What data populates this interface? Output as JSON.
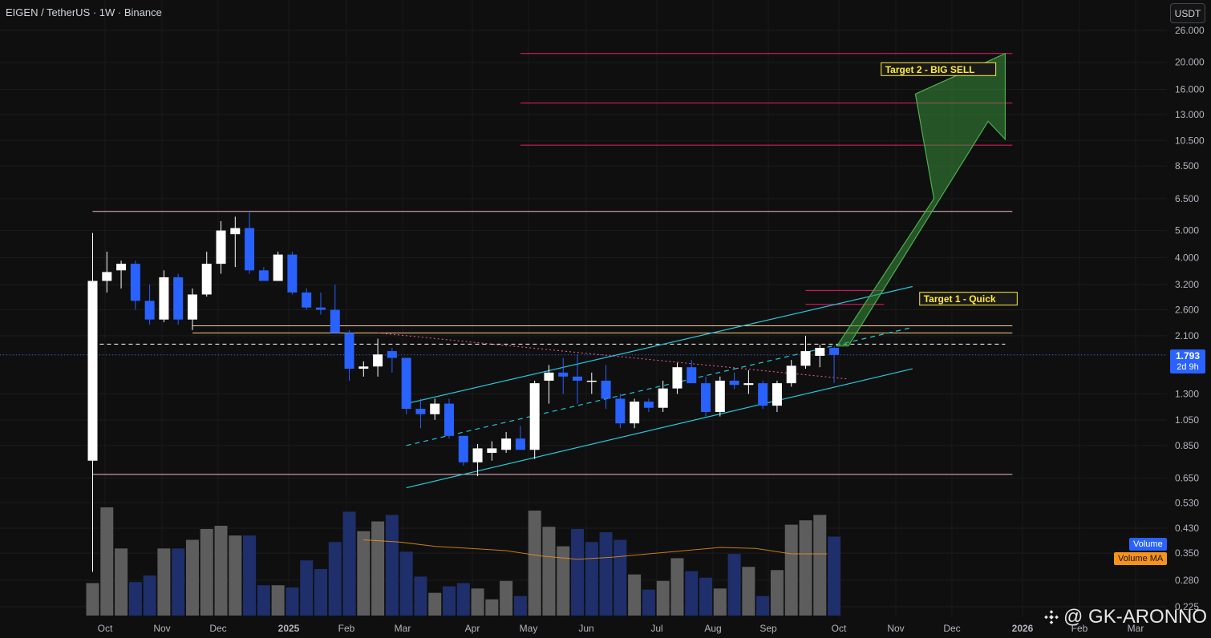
{
  "header": {
    "title": "EIGEN / TetherUS · 1W · Binance"
  },
  "unit_button": "USDT",
  "price_tag": {
    "price": "1.793",
    "countdown": "2d 9h"
  },
  "volume_tags": {
    "volume": "Volume",
    "volume_ma": "Volume MA"
  },
  "watermark": "@ GK-ARONNO",
  "annotations": {
    "target1": "Target 1 - Quick",
    "target2": "Target 2 - BIG SELL"
  },
  "colors": {
    "background": "#0f0f0f",
    "up_candle": "#ffffff",
    "down_candle": "#2962ff",
    "volume_up": "#5d5d5d",
    "volume_down": "#1e2f6b",
    "channel": "#26c6da",
    "resistance": "#f06292",
    "support": "#f8bbd0",
    "target_lines": "#e91e63",
    "arrow": "#2e7d32",
    "volume_ma": "#f7931a",
    "current_price": "#2962ff"
  },
  "chart_data": {
    "type": "candlestick",
    "title": "EIGEN / TetherUS · 1W · Binance",
    "y_scale": "log",
    "ylim": [
      0.225,
      26.0
    ],
    "y_ticks": [
      "26.000",
      "20.000",
      "16.000",
      "13.000",
      "10.500",
      "8.500",
      "6.500",
      "5.000",
      "4.000",
      "3.200",
      "2.600",
      "2.100",
      "1.793",
      "1.300",
      "1.050",
      "0.850",
      "0.650",
      "0.530",
      "0.430",
      "0.350",
      "0.280",
      "0.225"
    ],
    "x_ticks": [
      "Oct",
      "Nov",
      "Dec",
      "2025",
      "Feb",
      "Mar",
      "Apr",
      "May",
      "Jun",
      "Jul",
      "Aug",
      "Sep",
      "Oct",
      "Nov",
      "Dec",
      "2026",
      "Feb",
      "Mar"
    ],
    "x_range_weeks": [
      0,
      75
    ],
    "candles": [
      {
        "w": 0,
        "o": 0.75,
        "h": 4.9,
        "l": 0.3,
        "c": 3.3
      },
      {
        "w": 1,
        "o": 3.3,
        "h": 4.2,
        "l": 3.0,
        "c": 3.55
      },
      {
        "w": 2,
        "o": 3.6,
        "h": 3.9,
        "l": 3.1,
        "c": 3.8
      },
      {
        "w": 3,
        "o": 3.8,
        "h": 3.9,
        "l": 2.6,
        "c": 2.8
      },
      {
        "w": 4,
        "o": 2.8,
        "h": 3.2,
        "l": 2.3,
        "c": 2.4
      },
      {
        "w": 5,
        "o": 2.4,
        "h": 3.6,
        "l": 2.35,
        "c": 3.4
      },
      {
        "w": 6,
        "o": 3.4,
        "h": 3.5,
        "l": 2.3,
        "c": 2.4
      },
      {
        "w": 7,
        "o": 2.4,
        "h": 3.1,
        "l": 2.2,
        "c": 2.95
      },
      {
        "w": 8,
        "o": 2.95,
        "h": 4.2,
        "l": 2.9,
        "c": 3.8
      },
      {
        "w": 9,
        "o": 3.8,
        "h": 5.4,
        "l": 3.5,
        "c": 5.0
      },
      {
        "w": 10,
        "o": 4.85,
        "h": 5.6,
        "l": 3.7,
        "c": 5.1
      },
      {
        "w": 11,
        "o": 5.1,
        "h": 5.8,
        "l": 3.5,
        "c": 3.6
      },
      {
        "w": 12,
        "o": 3.6,
        "h": 3.7,
        "l": 3.3,
        "c": 3.3
      },
      {
        "w": 13,
        "o": 3.3,
        "h": 4.2,
        "l": 3.3,
        "c": 4.1
      },
      {
        "w": 14,
        "o": 4.1,
        "h": 4.2,
        "l": 2.95,
        "c": 3.0
      },
      {
        "w": 15,
        "o": 3.0,
        "h": 3.1,
        "l": 2.6,
        "c": 2.65
      },
      {
        "w": 16,
        "o": 2.65,
        "h": 3.0,
        "l": 2.5,
        "c": 2.6
      },
      {
        "w": 17,
        "o": 2.6,
        "h": 3.2,
        "l": 2.2,
        "c": 2.15
      },
      {
        "w": 18,
        "o": 2.15,
        "h": 2.2,
        "l": 1.45,
        "c": 1.6
      },
      {
        "w": 19,
        "o": 1.6,
        "h": 1.7,
        "l": 1.5,
        "c": 1.63
      },
      {
        "w": 20,
        "o": 1.63,
        "h": 2.05,
        "l": 1.5,
        "c": 1.8
      },
      {
        "w": 21,
        "o": 1.85,
        "h": 1.9,
        "l": 1.55,
        "c": 1.75
      },
      {
        "w": 22,
        "o": 1.75,
        "h": 1.75,
        "l": 1.1,
        "c": 1.15
      },
      {
        "w": 23,
        "o": 1.15,
        "h": 1.25,
        "l": 0.98,
        "c": 1.1
      },
      {
        "w": 24,
        "o": 1.1,
        "h": 1.25,
        "l": 1.05,
        "c": 1.2
      },
      {
        "w": 25,
        "o": 1.2,
        "h": 1.25,
        "l": 0.9,
        "c": 0.92
      },
      {
        "w": 26,
        "o": 0.92,
        "h": 0.92,
        "l": 0.72,
        "c": 0.74
      },
      {
        "w": 27,
        "o": 0.74,
        "h": 0.86,
        "l": 0.66,
        "c": 0.83
      },
      {
        "w": 28,
        "o": 0.8,
        "h": 0.88,
        "l": 0.75,
        "c": 0.83
      },
      {
        "w": 29,
        "o": 0.82,
        "h": 0.95,
        "l": 0.8,
        "c": 0.9
      },
      {
        "w": 30,
        "o": 0.9,
        "h": 1.0,
        "l": 0.83,
        "c": 0.82
      },
      {
        "w": 31,
        "o": 0.82,
        "h": 1.45,
        "l": 0.76,
        "c": 1.42
      },
      {
        "w": 32,
        "o": 1.45,
        "h": 1.65,
        "l": 1.2,
        "c": 1.55
      },
      {
        "w": 33,
        "o": 1.55,
        "h": 1.75,
        "l": 1.3,
        "c": 1.5
      },
      {
        "w": 34,
        "o": 1.5,
        "h": 1.8,
        "l": 1.2,
        "c": 1.45
      },
      {
        "w": 35,
        "o": 1.45,
        "h": 1.55,
        "l": 1.3,
        "c": 1.45
      },
      {
        "w": 36,
        "o": 1.45,
        "h": 1.65,
        "l": 1.15,
        "c": 1.25
      },
      {
        "w": 37,
        "o": 1.25,
        "h": 1.3,
        "l": 0.98,
        "c": 1.02
      },
      {
        "w": 38,
        "o": 1.02,
        "h": 1.25,
        "l": 0.98,
        "c": 1.22
      },
      {
        "w": 39,
        "o": 1.22,
        "h": 1.25,
        "l": 1.12,
        "c": 1.16
      },
      {
        "w": 40,
        "o": 1.16,
        "h": 1.45,
        "l": 1.12,
        "c": 1.36
      },
      {
        "w": 41,
        "o": 1.36,
        "h": 1.68,
        "l": 1.3,
        "c": 1.62
      },
      {
        "w": 42,
        "o": 1.62,
        "h": 1.72,
        "l": 1.42,
        "c": 1.42
      },
      {
        "w": 43,
        "o": 1.42,
        "h": 1.5,
        "l": 1.08,
        "c": 1.12
      },
      {
        "w": 44,
        "o": 1.12,
        "h": 1.5,
        "l": 1.08,
        "c": 1.45
      },
      {
        "w": 45,
        "o": 1.45,
        "h": 1.55,
        "l": 1.35,
        "c": 1.4
      },
      {
        "w": 46,
        "o": 1.4,
        "h": 1.58,
        "l": 1.3,
        "c": 1.42
      },
      {
        "w": 47,
        "o": 1.42,
        "h": 1.45,
        "l": 1.15,
        "c": 1.18
      },
      {
        "w": 48,
        "o": 1.18,
        "h": 1.45,
        "l": 1.12,
        "c": 1.42
      },
      {
        "w": 49,
        "o": 1.42,
        "h": 1.72,
        "l": 1.38,
        "c": 1.64
      },
      {
        "w": 50,
        "o": 1.64,
        "h": 2.1,
        "l": 1.6,
        "c": 1.85
      },
      {
        "w": 51,
        "o": 1.78,
        "h": 1.95,
        "l": 1.62,
        "c": 1.9
      },
      {
        "w": 52,
        "o": 1.9,
        "h": 1.92,
        "l": 1.42,
        "c": 1.793
      }
    ],
    "volume": [
      {
        "w": 0,
        "v": 30,
        "up": true
      },
      {
        "w": 1,
        "v": 100,
        "up": true
      },
      {
        "w": 2,
        "v": 62,
        "up": true
      },
      {
        "w": 3,
        "v": 31,
        "up": false
      },
      {
        "w": 4,
        "v": 37,
        "up": false
      },
      {
        "w": 5,
        "v": 62,
        "up": true
      },
      {
        "w": 6,
        "v": 62,
        "up": false
      },
      {
        "w": 7,
        "v": 70,
        "up": true
      },
      {
        "w": 8,
        "v": 80,
        "up": true
      },
      {
        "w": 9,
        "v": 83,
        "up": true
      },
      {
        "w": 10,
        "v": 74,
        "up": true
      },
      {
        "w": 11,
        "v": 74,
        "up": false
      },
      {
        "w": 12,
        "v": 28,
        "up": false
      },
      {
        "w": 13,
        "v": 28,
        "up": true
      },
      {
        "w": 14,
        "v": 26,
        "up": false
      },
      {
        "w": 15,
        "v": 51,
        "up": false
      },
      {
        "w": 16,
        "v": 43,
        "up": false
      },
      {
        "w": 17,
        "v": 68,
        "up": false
      },
      {
        "w": 18,
        "v": 96,
        "up": false
      },
      {
        "w": 19,
        "v": 78,
        "up": true
      },
      {
        "w": 20,
        "v": 87,
        "up": true
      },
      {
        "w": 21,
        "v": 93,
        "up": false
      },
      {
        "w": 22,
        "v": 59,
        "up": false
      },
      {
        "w": 23,
        "v": 36,
        "up": false
      },
      {
        "w": 24,
        "v": 21,
        "up": true
      },
      {
        "w": 25,
        "v": 27,
        "up": false
      },
      {
        "w": 26,
        "v": 30,
        "up": false
      },
      {
        "w": 27,
        "v": 25,
        "up": true
      },
      {
        "w": 28,
        "v": 15,
        "up": true
      },
      {
        "w": 29,
        "v": 32,
        "up": true
      },
      {
        "w": 30,
        "v": 18,
        "up": false
      },
      {
        "w": 31,
        "v": 97,
        "up": true
      },
      {
        "w": 32,
        "v": 82,
        "up": true
      },
      {
        "w": 33,
        "v": 64,
        "up": true
      },
      {
        "w": 34,
        "v": 80,
        "up": false
      },
      {
        "w": 35,
        "v": 68,
        "up": false
      },
      {
        "w": 36,
        "v": 77,
        "up": false
      },
      {
        "w": 37,
        "v": 70,
        "up": false
      },
      {
        "w": 38,
        "v": 38,
        "up": true
      },
      {
        "w": 39,
        "v": 24,
        "up": false
      },
      {
        "w": 40,
        "v": 32,
        "up": true
      },
      {
        "w": 41,
        "v": 53,
        "up": true
      },
      {
        "w": 42,
        "v": 41,
        "up": false
      },
      {
        "w": 43,
        "v": 35,
        "up": false
      },
      {
        "w": 44,
        "v": 25,
        "up": true
      },
      {
        "w": 45,
        "v": 57,
        "up": false
      },
      {
        "w": 46,
        "v": 45,
        "up": true
      },
      {
        "w": 47,
        "v": 18,
        "up": false
      },
      {
        "w": 48,
        "v": 42,
        "up": true
      },
      {
        "w": 49,
        "v": 84,
        "up": true
      },
      {
        "w": 50,
        "v": 88,
        "up": true
      },
      {
        "w": 51,
        "v": 93,
        "up": true
      },
      {
        "w": 52,
        "v": 73,
        "up": false
      }
    ],
    "horizontal_lines": [
      {
        "price": 21.5,
        "x_from": 30.0,
        "x_to": 64.5,
        "color": "#e91e63"
      },
      {
        "price": 14.3,
        "x_from": 30.0,
        "x_to": 64.5,
        "color": "#e91e63"
      },
      {
        "price": 10.1,
        "x_from": 30.0,
        "x_to": 64.5,
        "color": "#e91e63"
      },
      {
        "price": 5.85,
        "x_from": 0.0,
        "x_to": 64.5,
        "color": "#f8bbd0"
      },
      {
        "price": 3.05,
        "x_from": 50.0,
        "x_to": 55.5,
        "color": "#e91e63"
      },
      {
        "price": 2.72,
        "x_from": 50.0,
        "x_to": 55.5,
        "color": "#e91e63"
      },
      {
        "price": 2.28,
        "x_from": 7.0,
        "x_to": 64.5,
        "color": "#ffcc80"
      },
      {
        "price": 2.15,
        "x_from": 7.0,
        "x_to": 64.5,
        "color": "#ffcc80"
      },
      {
        "price": 1.96,
        "x_from": 0.5,
        "x_to": 64.0,
        "color": "#ffffff",
        "dashed": true
      },
      {
        "price": 0.67,
        "x_from": 0.0,
        "x_to": 64.5,
        "color": "#f8bbd0"
      }
    ],
    "channel_lines": [
      {
        "x1": 22.0,
        "y1": 1.2,
        "x2": 57.5,
        "y2": 3.15,
        "style": "solid"
      },
      {
        "x1": 22.0,
        "y1": 0.85,
        "x2": 57.5,
        "y2": 2.25,
        "style": "dashed"
      },
      {
        "x1": 22.0,
        "y1": 0.6,
        "x2": 57.5,
        "y2": 1.6,
        "style": "solid"
      }
    ],
    "trend_line": {
      "x1": 20.0,
      "y1": 2.15,
      "x2": 53.0,
      "y2": 1.47,
      "color": "#f06292",
      "style": "dotted"
    },
    "current_price": 1.793,
    "volume_ma": [
      70,
      68,
      64,
      62,
      60,
      55,
      52,
      54,
      57,
      60,
      63,
      62,
      57,
      57
    ],
    "target_labels": [
      {
        "text": "Target 1 - Quick",
        "price": 2.85,
        "x": 58.0
      },
      {
        "text": "Target 2 - BIG SELL",
        "price": 18.9,
        "x": 55.3
      }
    ]
  }
}
